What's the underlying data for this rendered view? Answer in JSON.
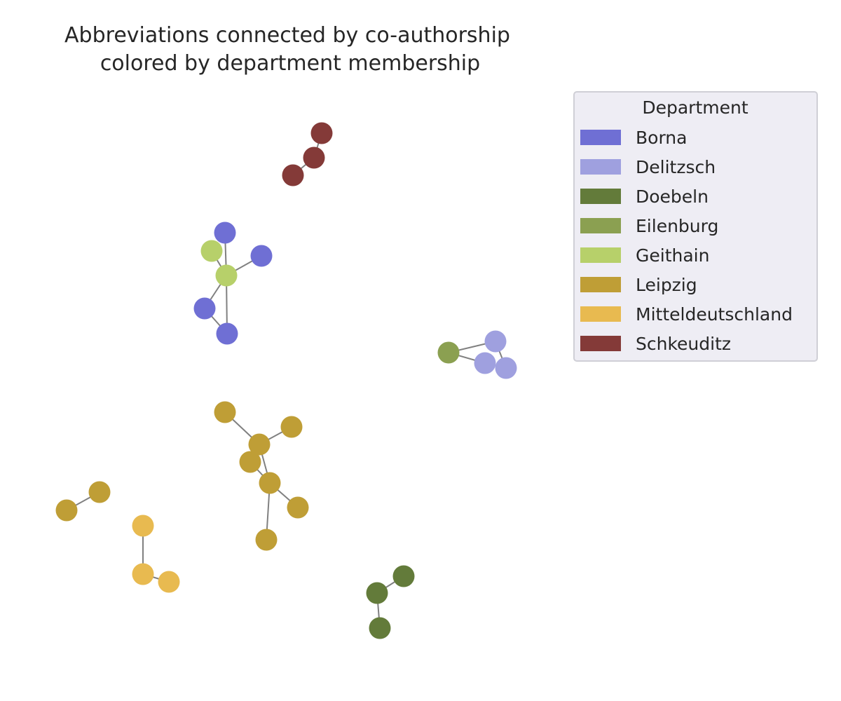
{
  "title": {
    "line1": "Abbreviations connected by co-authorship",
    "line2": "colored by department membership"
  },
  "legend": {
    "title": "Department",
    "entries": [
      {
        "id": "borna",
        "label": "Borna",
        "color": "#6f6fd4"
      },
      {
        "id": "delitzsch",
        "label": "Delitzsch",
        "color": "#9fa0df"
      },
      {
        "id": "doebeln",
        "label": "Doebeln",
        "color": "#637b3a"
      },
      {
        "id": "eilenburg",
        "label": "Eilenburg",
        "color": "#8ba051"
      },
      {
        "id": "geithain",
        "label": "Geithain",
        "color": "#b7d06a"
      },
      {
        "id": "leipzig",
        "label": "Leipzig",
        "color": "#bf9e36"
      },
      {
        "id": "mitteldeutschland",
        "label": "Mitteldeutschland",
        "color": "#e8ba50"
      },
      {
        "id": "schkeuditz",
        "label": "Schkeuditz",
        "color": "#843a38"
      }
    ]
  },
  "edge_color": "#808080",
  "graph": {
    "nodes": [
      {
        "id": "s1",
        "dept": "schkeuditz"
      },
      {
        "id": "s2",
        "dept": "schkeuditz"
      },
      {
        "id": "s3",
        "dept": "schkeuditz"
      },
      {
        "id": "b1",
        "dept": "borna"
      },
      {
        "id": "b2",
        "dept": "borna"
      },
      {
        "id": "b3",
        "dept": "borna"
      },
      {
        "id": "b4",
        "dept": "borna"
      },
      {
        "id": "g1",
        "dept": "geithain"
      },
      {
        "id": "g2",
        "dept": "geithain"
      },
      {
        "id": "e1",
        "dept": "eilenburg"
      },
      {
        "id": "d1",
        "dept": "delitzsch"
      },
      {
        "id": "d2",
        "dept": "delitzsch"
      },
      {
        "id": "d3",
        "dept": "delitzsch"
      },
      {
        "id": "l1",
        "dept": "leipzig"
      },
      {
        "id": "l2",
        "dept": "leipzig"
      },
      {
        "id": "l3",
        "dept": "leipzig"
      },
      {
        "id": "l4",
        "dept": "leipzig"
      },
      {
        "id": "l5",
        "dept": "leipzig"
      },
      {
        "id": "l6",
        "dept": "leipzig"
      },
      {
        "id": "l7",
        "dept": "leipzig"
      },
      {
        "id": "l8",
        "dept": "leipzig"
      },
      {
        "id": "l9",
        "dept": "leipzig"
      },
      {
        "id": "m1",
        "dept": "mitteldeutschland"
      },
      {
        "id": "m2",
        "dept": "mitteldeutschland"
      },
      {
        "id": "m3",
        "dept": "mitteldeutschland"
      },
      {
        "id": "o1",
        "dept": "doebeln"
      },
      {
        "id": "o2",
        "dept": "doebeln"
      },
      {
        "id": "o3",
        "dept": "doebeln"
      }
    ],
    "edges": [
      [
        "s1",
        "s2"
      ],
      [
        "s2",
        "s3"
      ],
      [
        "b1",
        "g2"
      ],
      [
        "g1",
        "g2"
      ],
      [
        "b2",
        "g2"
      ],
      [
        "g2",
        "b3"
      ],
      [
        "g2",
        "b4"
      ],
      [
        "b3",
        "b4"
      ],
      [
        "e1",
        "d1"
      ],
      [
        "e1",
        "d2"
      ],
      [
        "d1",
        "d3"
      ],
      [
        "l1",
        "l3"
      ],
      [
        "l2",
        "l3"
      ],
      [
        "l3",
        "l4"
      ],
      [
        "l3",
        "l5"
      ],
      [
        "l4",
        "l5"
      ],
      [
        "l5",
        "l6"
      ],
      [
        "l5",
        "l7"
      ],
      [
        "l8",
        "l9"
      ],
      [
        "m1",
        "m2"
      ],
      [
        "m2",
        "m3"
      ],
      [
        "o1",
        "o2"
      ],
      [
        "o2",
        "o3"
      ]
    ]
  }
}
